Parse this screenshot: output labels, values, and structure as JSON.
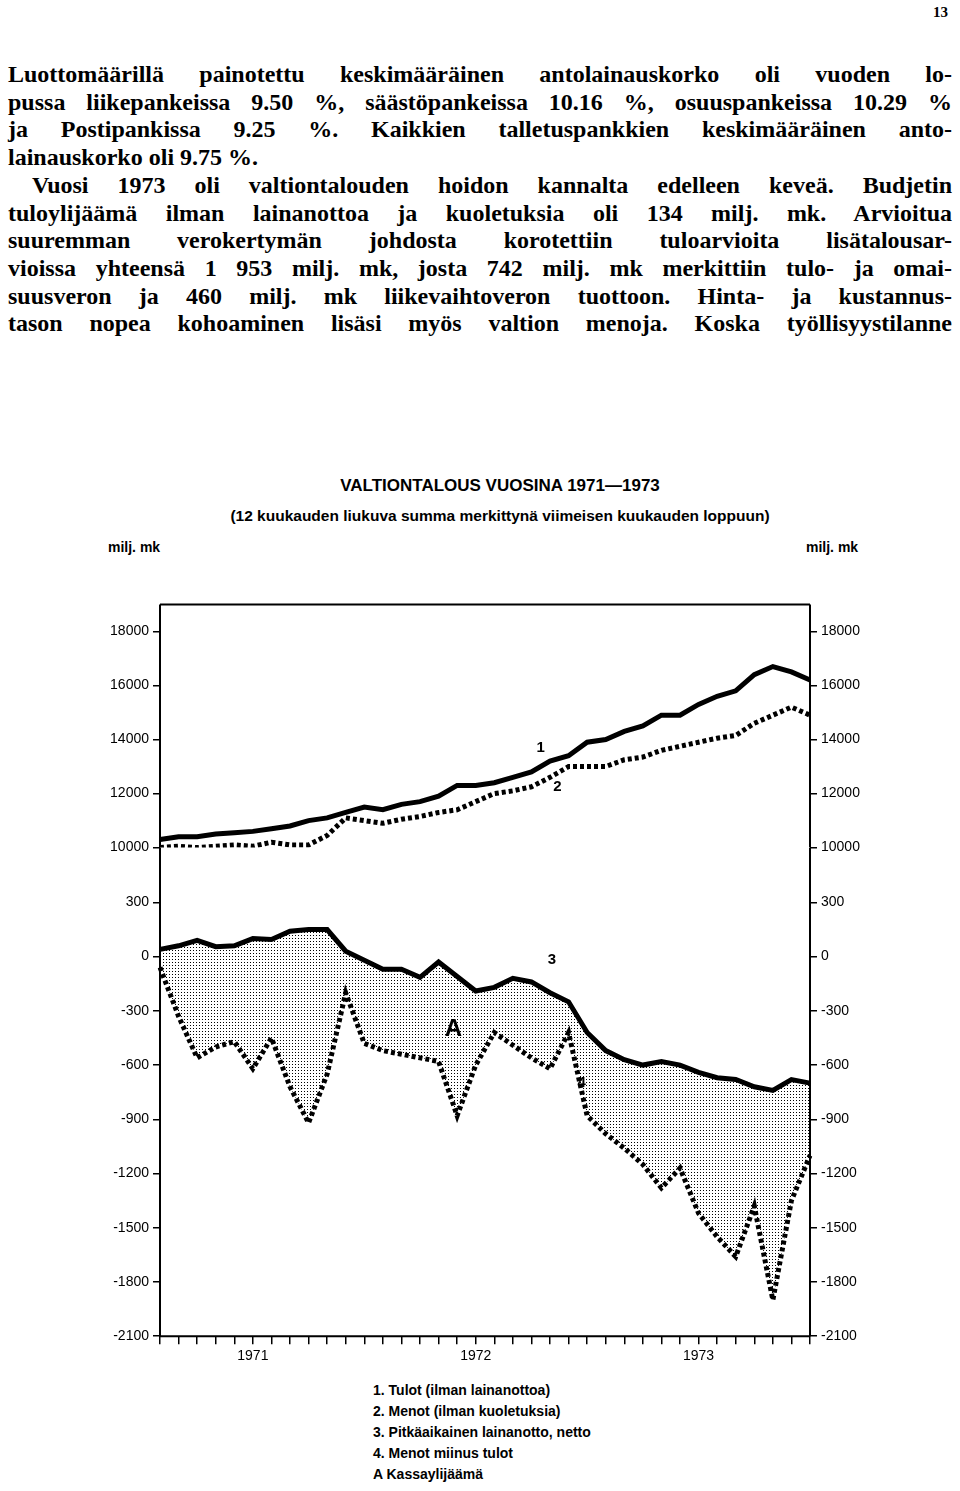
{
  "page": {
    "number": "13",
    "paragraphs": [
      [
        "Luottomäärillä painotettu keskimääräinen antolainauskorko oli vuoden lo-",
        "pussa liikepankeissa 9.50 %, säästöpankeissa 10.16 %, osuuspankeissa 10.29 %",
        "ja Postipankissa 9.25 %. Kaikkien talletuspankkien keskimääräinen anto-",
        "lainauskorko oli 9.75 %."
      ],
      [
        "Vuosi 1973 oli valtiontalouden hoidon kannalta edelleen keveä. Budjetin",
        "tuloylijäämä ilman lainanottoa ja kuoletuksia oli 134 milj. mk. Arvioitua",
        "suuremman verokertymän johdosta korotettiin tuloarvioita lisätalousar-",
        "vioissa yhteensä 1 953 milj. mk, josta 742 milj. mk merkittiin tulo- ja omai-",
        "suusveron ja 460 milj. mk liikevaihtoveron tuottoon. Hinta- ja kustannus-",
        "tason nopea kohoaminen lisäsi myös valtion menoja. Koska työllisyystilanne"
      ]
    ]
  },
  "figure": {
    "title": "VALTIONTALOUS VUOSINA 1971—1973",
    "subtitle": "(12 kuukauden liukuva summa merkittynä viimeisen kuukauden loppuun)",
    "unit_left": "milj. mk",
    "unit_right": "milj. mk"
  },
  "chart_data": [
    {
      "type": "line",
      "grid": false,
      "tick_labels": "y",
      "categories": [
        null,
        null,
        null,
        null,
        null,
        null,
        null,
        null,
        null,
        null,
        null,
        null,
        null,
        null,
        null,
        null,
        null,
        null,
        null,
        null,
        null,
        null,
        null,
        null,
        null,
        null,
        null,
        null,
        null,
        null,
        null,
        null,
        null,
        null,
        null,
        null
      ],
      "ylim": [
        10000,
        19000
      ],
      "yticks": [
        10000,
        12000,
        14000,
        16000,
        18000
      ],
      "series": [
        {
          "name": "1. Tulot (ilman lainanottoa)",
          "color": "#000000",
          "line_style": "solid",
          "values": [
            10300,
            10400,
            10400,
            10500,
            10550,
            10600,
            10700,
            10800,
            11000,
            11100,
            11300,
            11500,
            11400,
            11600,
            11700,
            11900,
            12300,
            12300,
            12400,
            12600,
            12800,
            13200,
            13400,
            13900,
            14000,
            14300,
            14500,
            14900,
            14900,
            15300,
            15600,
            15800,
            16400,
            16700,
            16500,
            16200
          ]
        },
        {
          "name": "2. Menot (ilman kuoletuksia)",
          "color": "#000000",
          "line_style": "dotted",
          "values": [
            10000,
            10050,
            10000,
            10050,
            10100,
            10050,
            10200,
            10100,
            10100,
            10450,
            11100,
            11000,
            10900,
            11050,
            11150,
            11300,
            11400,
            11700,
            12000,
            12100,
            12250,
            12600,
            13000,
            13000,
            13000,
            13250,
            13350,
            13600,
            13750,
            13900,
            14050,
            14150,
            14600,
            14900,
            15200,
            14900
          ]
        }
      ],
      "annotations": [
        {
          "text": "1",
          "x": 20.5,
          "y": 13700
        },
        {
          "text": "2",
          "x": 21.4,
          "y": 12250
        }
      ]
    },
    {
      "type": "line",
      "grid": false,
      "categories": [
        null,
        null,
        null,
        null,
        null,
        "1971",
        null,
        null,
        null,
        null,
        null,
        null,
        null,
        null,
        null,
        null,
        null,
        "1972",
        null,
        null,
        null,
        null,
        null,
        null,
        null,
        null,
        null,
        null,
        null,
        "1973",
        null,
        null,
        null,
        null,
        null,
        null
      ],
      "ylim": [
        -2100,
        300
      ],
      "yticks": [
        -2100,
        -1800,
        -1500,
        -1200,
        -900,
        -600,
        -300,
        0,
        300
      ],
      "series": [
        {
          "name": "3. Pitkäaikainen lainanotto, netto",
          "color": "#000000",
          "line_style": "solid",
          "values": [
            40,
            60,
            90,
            55,
            60,
            100,
            95,
            140,
            150,
            150,
            30,
            -20,
            -70,
            -70,
            -115,
            -30,
            -110,
            -190,
            -170,
            -120,
            -140,
            -200,
            -250,
            -420,
            -520,
            -570,
            -600,
            -580,
            -600,
            -640,
            -670,
            -680,
            -720,
            -740,
            -680,
            -700
          ]
        },
        {
          "name": "4. Menot miinus tulot",
          "color": "#000000",
          "line_style": "dotted",
          "values": [
            -60,
            -330,
            -560,
            -500,
            -470,
            -620,
            -450,
            -720,
            -920,
            -650,
            -200,
            -480,
            -520,
            -540,
            -560,
            -580,
            -880,
            -600,
            -420,
            -490,
            -560,
            -620,
            -420,
            -880,
            -980,
            -1060,
            -1150,
            -1280,
            -1170,
            -1420,
            -1550,
            -1660,
            -1380,
            -1900,
            -1350,
            -1100
          ]
        }
      ],
      "area": {
        "name": "A Kassaylijäämä",
        "label": "A",
        "x": 15.8,
        "y": -400
      },
      "annotations": [
        {
          "text": "3",
          "x": 21.1,
          "y": -20
        },
        {
          "text": "4",
          "x": 22.7,
          "y": -700
        }
      ]
    }
  ]
}
